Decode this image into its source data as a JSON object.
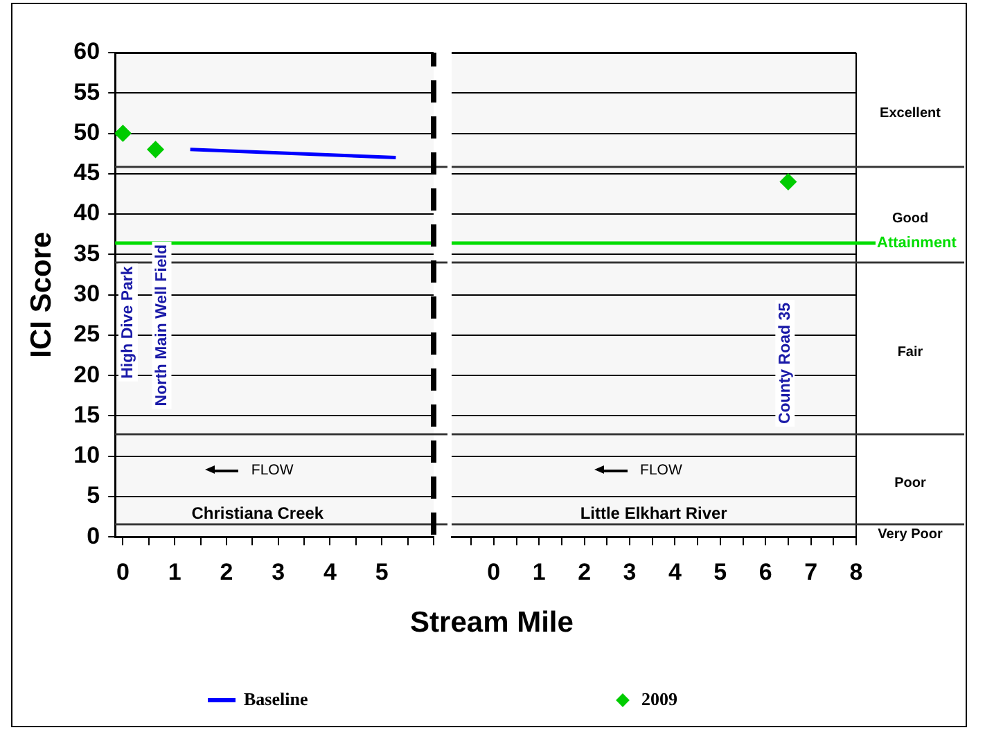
{
  "chart_data": [
    {
      "type": "scatter",
      "xlabel": "Stream Mile",
      "ylabel": "ICI Score",
      "xlim": [
        -0.15,
        6.0
      ],
      "ylim": [
        0,
        60
      ],
      "xticks": [
        0,
        {
          "value": 0.5,
          "label": null
        },
        1,
        {
          "value": 1.5,
          "label": null
        },
        2,
        {
          "value": 2.5,
          "label": null
        },
        3,
        {
          "value": 3.5,
          "label": null
        },
        4,
        {
          "value": 4.5,
          "label": null
        },
        5,
        {
          "value": 5.5,
          "label": null
        },
        {
          "value": 6,
          "label": null
        }
      ],
      "yticks": [
        0,
        5,
        10,
        15,
        20,
        25,
        30,
        35,
        40,
        45,
        50,
        55,
        60
      ],
      "grid": "y",
      "legend": "bottom",
      "series": [
        {
          "name": "Baseline",
          "type": "line",
          "color": "#0000ff",
          "marker": "none",
          "x": [
            1.3,
            5.27
          ],
          "values": [
            48,
            47
          ]
        },
        {
          "name": "2009",
          "color": "#00cc00",
          "marker": "diamond",
          "x": [
            0,
            0.63
          ],
          "values": [
            50,
            48
          ]
        }
      ],
      "bands": [
        {
          "axis": "y",
          "from": 46,
          "to": 60,
          "color": "#f7f7f7"
        },
        {
          "axis": "y",
          "from": 34,
          "to": 46,
          "color": "#f7f7f7"
        },
        {
          "axis": "y",
          "from": 12.8,
          "to": 34,
          "color": "#f7f7f7"
        },
        {
          "axis": "y",
          "from": 1.6,
          "to": 12.8,
          "color": "#f7f7f7"
        },
        {
          "axis": "y",
          "from": 0,
          "to": 1.6,
          "color": "#f7f7f7"
        }
      ],
      "ref_lines": [
        {
          "axis": "y",
          "value": 36.4,
          "color": "#00dd00",
          "line_style": "solid"
        },
        {
          "axis": "x",
          "value": 6,
          "color": "#000000",
          "line_style": "dashed"
        }
      ],
      "annotations": [
        "High Dive Park",
        "North Main Well Field",
        "Christiana Creek",
        "FLOW"
      ]
    },
    {
      "type": "scatter",
      "xlim": [
        -0.93,
        8
      ],
      "ylim": [
        0,
        60
      ],
      "xticks": [
        {
          "value": -0.5,
          "label": null
        },
        0,
        {
          "value": 0.5,
          "label": null
        },
        1,
        {
          "value": 1.5,
          "label": null
        },
        2,
        {
          "value": 2.5,
          "label": null
        },
        3,
        {
          "value": 3.5,
          "label": null
        },
        4,
        {
          "value": 4.5,
          "label": null
        },
        5,
        {
          "value": 5.5,
          "label": null
        },
        6,
        {
          "value": 6.5,
          "label": null
        },
        7,
        {
          "value": 7.5,
          "label": null
        },
        8
      ],
      "yticks": [
        0,
        5,
        10,
        15,
        20,
        25,
        30,
        35,
        40,
        45,
        50,
        55,
        60
      ],
      "tick_labels": "x",
      "grid": "y",
      "series": [
        {
          "name": "2009",
          "color": "#00cc00",
          "marker": "diamond",
          "x": [
            6.5
          ],
          "values": [
            44
          ]
        }
      ],
      "bands": [
        {
          "axis": "y",
          "from": 46,
          "to": 60,
          "label": "Excellent",
          "color": "#f7f7f7"
        },
        {
          "axis": "y",
          "from": 34,
          "to": 46,
          "label": "Good",
          "color": "#f7f7f7"
        },
        {
          "axis": "y",
          "from": 12.8,
          "to": 34,
          "label": "Fair",
          "color": "#f7f7f7"
        },
        {
          "axis": "y",
          "from": 1.6,
          "to": 12.8,
          "label": "Poor",
          "color": "#f7f7f7"
        },
        {
          "axis": "y",
          "from": 0,
          "to": 1.6,
          "label": "Very Poor",
          "color": "#f7f7f7"
        }
      ],
      "ref_lines": [
        {
          "axis": "y",
          "value": 36.4,
          "label": "Attainment",
          "color": "#00dd00",
          "line_style": "solid"
        }
      ],
      "annotations": [
        "County Road 35",
        "Little Elkhart River",
        "FLOW"
      ]
    }
  ]
}
